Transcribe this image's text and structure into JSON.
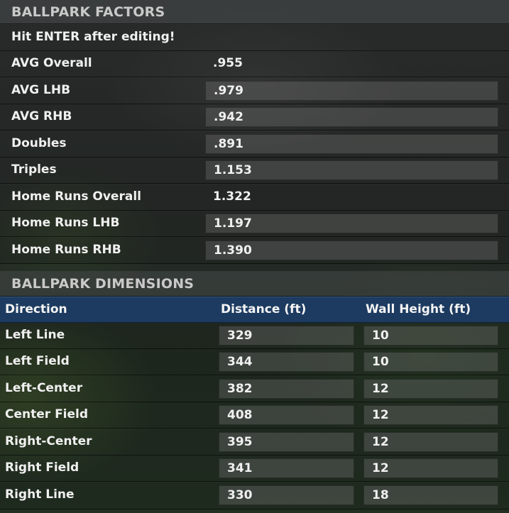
{
  "factors": {
    "title": "BALLPARK FACTORS",
    "notice": "Hit ENTER after editing!",
    "rows": [
      {
        "label": "AVG Overall",
        "value": ".955",
        "editable": false
      },
      {
        "label": "AVG LHB",
        "value": ".979",
        "editable": true
      },
      {
        "label": "AVG RHB",
        "value": ".942",
        "editable": true
      },
      {
        "label": "Doubles",
        "value": ".891",
        "editable": true
      },
      {
        "label": "Triples",
        "value": "1.153",
        "editable": true
      },
      {
        "label": "Home Runs Overall",
        "value": "1.322",
        "editable": false
      },
      {
        "label": "Home Runs LHB",
        "value": "1.197",
        "editable": true
      },
      {
        "label": "Home Runs RHB",
        "value": "1.390",
        "editable": true
      }
    ]
  },
  "dimensions": {
    "title": "BALLPARK DIMENSIONS",
    "columns": [
      "Direction",
      "Distance (ft)",
      "Wall Height (ft)"
    ],
    "rows": [
      {
        "direction": "Left Line",
        "distance": "329",
        "wall": "10"
      },
      {
        "direction": "Left Field",
        "distance": "344",
        "wall": "10"
      },
      {
        "direction": "Left-Center",
        "distance": "382",
        "wall": "12"
      },
      {
        "direction": "Center Field",
        "distance": "408",
        "wall": "12"
      },
      {
        "direction": "Right-Center",
        "distance": "395",
        "wall": "12"
      },
      {
        "direction": "Right Field",
        "distance": "341",
        "wall": "12"
      },
      {
        "direction": "Right Line",
        "distance": "330",
        "wall": "18"
      }
    ]
  },
  "colors": {
    "column_header_bg": "#1d3b60",
    "section_header_text": "#c9c9c9"
  }
}
